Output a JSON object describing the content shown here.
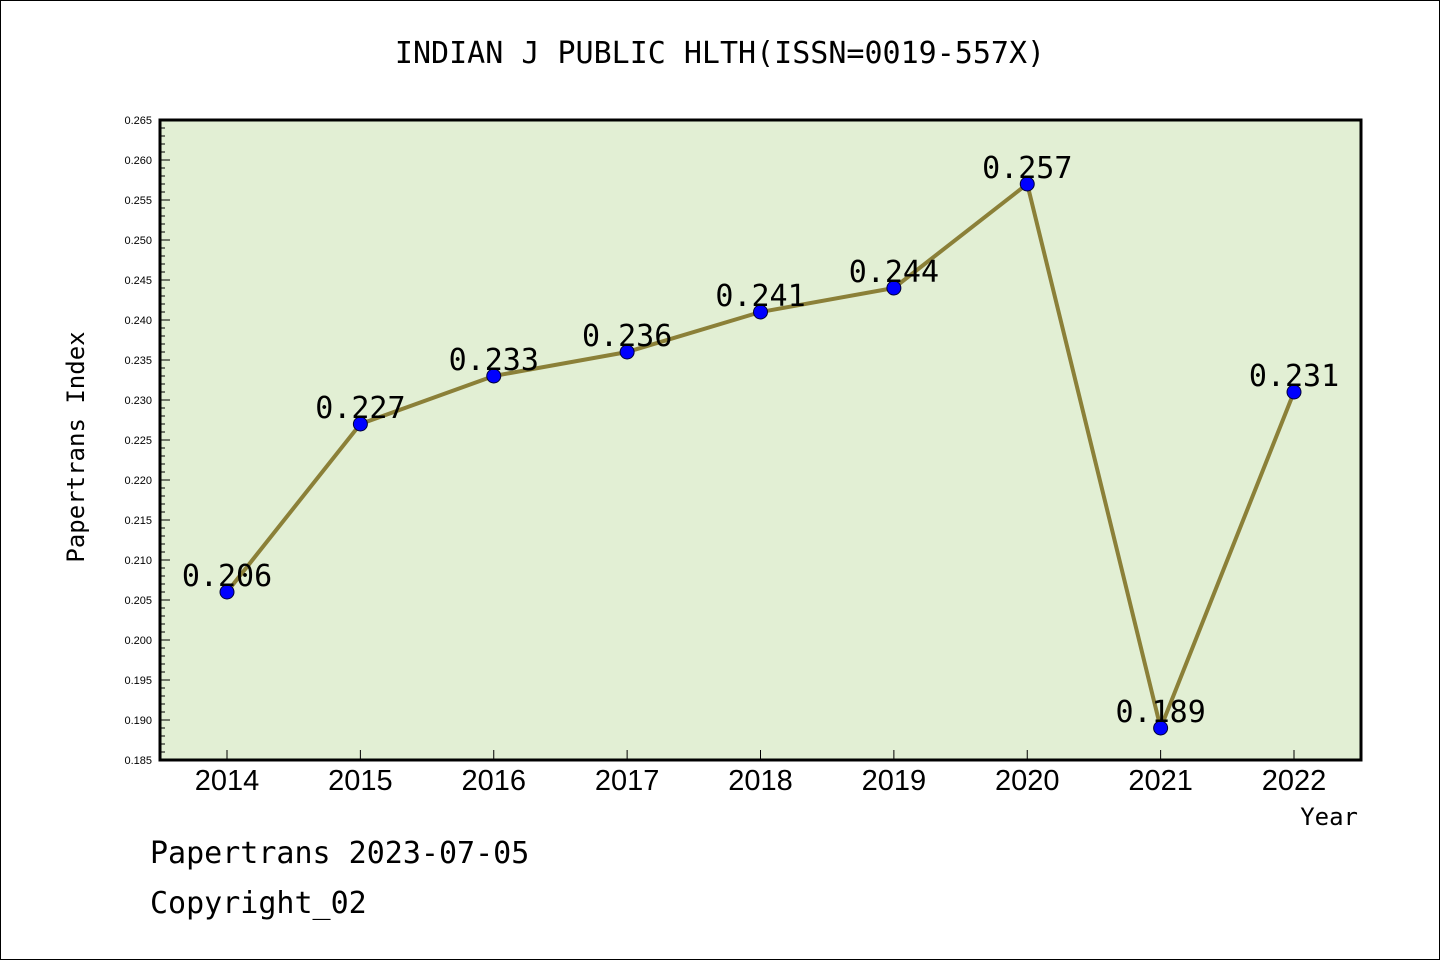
{
  "chart_data": {
    "type": "line",
    "title": "INDIAN J PUBLIC HLTH(ISSN=0019-557X)",
    "xlabel": "Year",
    "ylabel": "Papertrans Index",
    "categories": [
      "2014",
      "2015",
      "2016",
      "2017",
      "2018",
      "2019",
      "2020",
      "2021",
      "2022"
    ],
    "values": [
      0.206,
      0.227,
      0.233,
      0.236,
      0.241,
      0.244,
      0.257,
      0.189,
      0.231
    ],
    "value_labels": [
      "0.206",
      "0.227",
      "0.233",
      "0.236",
      "0.241",
      "0.244",
      "0.257",
      "0.189",
      "0.231"
    ],
    "ylim": [
      0.185,
      0.265
    ],
    "yticks": [
      "0.185",
      "0.190",
      "0.195",
      "0.200",
      "0.205",
      "0.210",
      "0.215",
      "0.220",
      "0.225",
      "0.230",
      "0.235",
      "0.240",
      "0.245",
      "0.250",
      "0.255",
      "0.260",
      "0.265"
    ],
    "grid": false,
    "colors": {
      "plot_background": "#e2efd4",
      "line": "#8b8038",
      "marker": "#0000ff"
    }
  },
  "footer": {
    "line1": "Papertrans 2023-07-05",
    "line2": "Copyright_02"
  }
}
